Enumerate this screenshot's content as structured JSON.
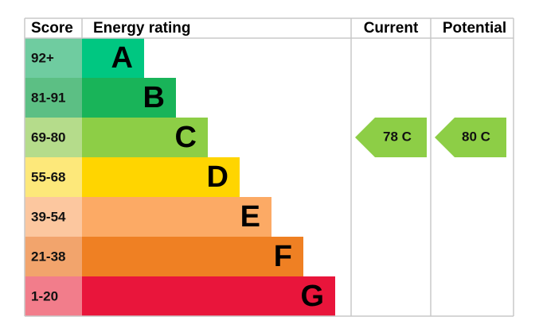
{
  "header": {
    "score": "Score",
    "energy_rating": "Energy rating",
    "current": "Current",
    "potential": "Potential"
  },
  "bands": [
    {
      "score": "92+",
      "letter": "A"
    },
    {
      "score": "81-91",
      "letter": "B"
    },
    {
      "score": "69-80",
      "letter": "C"
    },
    {
      "score": "55-68",
      "letter": "D"
    },
    {
      "score": "39-54",
      "letter": "E"
    },
    {
      "score": "21-38",
      "letter": "F"
    },
    {
      "score": "1-20",
      "letter": "G"
    }
  ],
  "current": {
    "label": "78 C"
  },
  "potential": {
    "label": "80 C"
  }
}
